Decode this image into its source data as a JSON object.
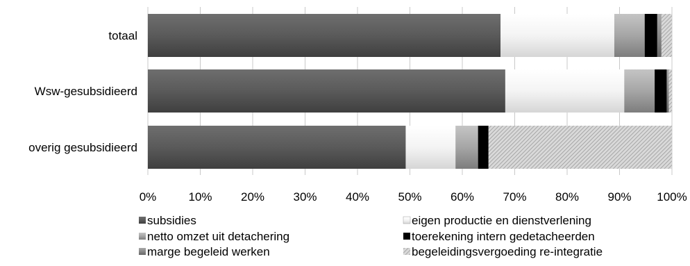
{
  "chart_data": {
    "type": "bar",
    "orientation": "horizontal",
    "stacked": true,
    "percent_stacked": true,
    "categories": [
      "totaal",
      "Wsw-gesubsidieerd",
      "overig gesubsidieerd"
    ],
    "series": [
      {
        "name": "subsidies",
        "values": [
          67.3,
          68.2,
          49.2
        ],
        "color": "#595959",
        "pattern": "solid-gradient"
      },
      {
        "name": "eigen productie en dienstverlening",
        "values": [
          21.7,
          22.7,
          9.5
        ],
        "color": "#f2f2f2",
        "pattern": "light-gradient"
      },
      {
        "name": "netto omzet uit detachering",
        "values": [
          5.8,
          5.8,
          4.3
        ],
        "color": "#a6a6a6",
        "pattern": "mid-gradient"
      },
      {
        "name": "toerekening intern gedetacheerden",
        "values": [
          2.4,
          2.3,
          2.0
        ],
        "color": "#000000",
        "pattern": "solid"
      },
      {
        "name": "marge begeleid werken",
        "values": [
          0.8,
          0.4,
          0.0
        ],
        "color": "#8c8c8c",
        "pattern": "mid-gradient"
      },
      {
        "name": "begeleidingsvergoeding re-integratie",
        "values": [
          2.0,
          0.6,
          35.0
        ],
        "color": "#cfcfcf",
        "pattern": "hatch"
      }
    ],
    "x_ticks": [
      "0%",
      "10%",
      "20%",
      "30%",
      "40%",
      "50%",
      "60%",
      "70%",
      "80%",
      "90%",
      "100%"
    ],
    "xlim": [
      0,
      100
    ],
    "grid": "vertical",
    "legend_position": "bottom",
    "legend_order": [
      "subsidies",
      "eigen productie en dienstverlening",
      "netto omzet uit detachering",
      "toerekening intern gedetacheerden",
      "marge begeleid werken",
      "begeleidingsvergoeding re-integratie"
    ]
  }
}
